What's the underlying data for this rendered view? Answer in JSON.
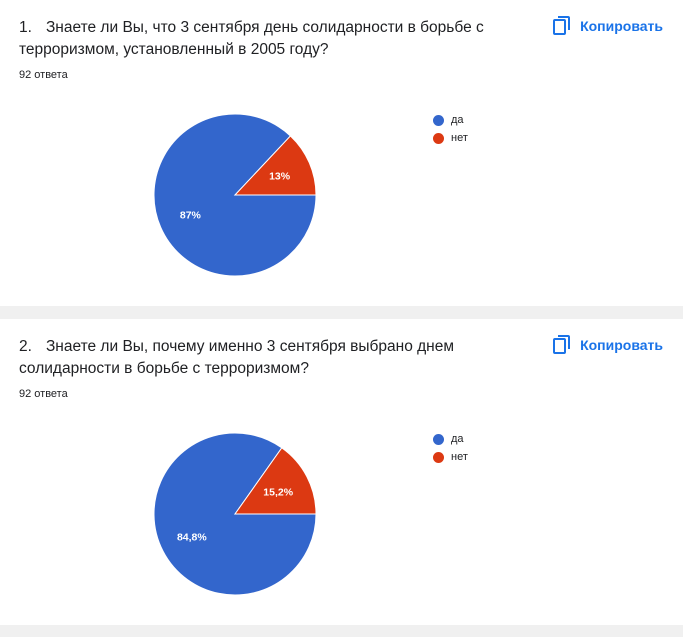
{
  "copy_label": "Копировать",
  "colors": {
    "yes": "#3366cc",
    "no": "#dc3912",
    "accent": "#1a73e8"
  },
  "questions": [
    {
      "number": "1.",
      "title": "Знаете ли Вы, что 3 сентября день солидарности в борьбе с терроризмом, установленный в 2005 году?",
      "responses": "92 ответа"
    },
    {
      "number": "2.",
      "title": "Знаете ли Вы, почему именно 3 сентября выбрано днем солидарности в борьбе с терроризмом?",
      "responses": "92 ответа"
    }
  ],
  "chart_data": [
    {
      "type": "pie",
      "labels": [
        "да",
        "нет"
      ],
      "values": [
        87,
        13
      ],
      "value_labels": [
        "87%",
        "13%"
      ],
      "legend": "right"
    },
    {
      "type": "pie",
      "labels": [
        "да",
        "нет"
      ],
      "values": [
        84.8,
        15.2
      ],
      "value_labels": [
        "84,8%",
        "15,2%"
      ],
      "legend": "right"
    }
  ]
}
